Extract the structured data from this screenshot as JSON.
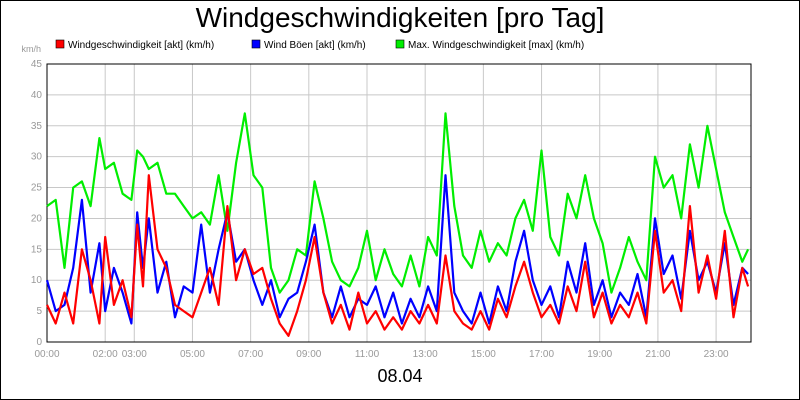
{
  "title": "Windgeschwindigkeiten [pro Tag]",
  "footer_date": "08.04",
  "chart_data": {
    "type": "line",
    "title": "Windgeschwindigkeiten [pro Tag]",
    "ylabel": "km/h",
    "xlabel": "",
    "ylim": [
      0,
      45
    ],
    "yticks": [
      0,
      5,
      10,
      15,
      20,
      25,
      30,
      35,
      40,
      45
    ],
    "xlim": [
      0,
      24.2
    ],
    "xticks": [
      {
        "label": "00:00",
        "x": 0
      },
      {
        "label": "02:00",
        "x": 2
      },
      {
        "label": "03:00",
        "x": 3
      },
      {
        "label": "05:00",
        "x": 5
      },
      {
        "label": "07:00",
        "x": 7
      },
      {
        "label": "09:00",
        "x": 9
      },
      {
        "label": "11:00",
        "x": 11
      },
      {
        "label": "13:00",
        "x": 13
      },
      {
        "label": "15:00",
        "x": 15
      },
      {
        "label": "17:00",
        "x": 17
      },
      {
        "label": "19:00",
        "x": 19
      },
      {
        "label": "21:00",
        "x": 21
      },
      {
        "label": "23:00",
        "x": 23
      }
    ],
    "grid": true,
    "legend_position": "top",
    "series": [
      {
        "name": "Windgeschwindigkeit [akt] (km/h)",
        "color": "#ff0000",
        "points": [
          [
            0.0,
            6
          ],
          [
            0.3,
            3
          ],
          [
            0.6,
            8
          ],
          [
            0.9,
            3
          ],
          [
            1.2,
            15
          ],
          [
            1.5,
            10
          ],
          [
            1.8,
            3
          ],
          [
            2.0,
            17
          ],
          [
            2.3,
            6
          ],
          [
            2.6,
            10
          ],
          [
            2.9,
            4
          ],
          [
            3.1,
            19
          ],
          [
            3.3,
            9
          ],
          [
            3.5,
            27
          ],
          [
            3.8,
            15
          ],
          [
            4.1,
            12
          ],
          [
            4.4,
            6
          ],
          [
            4.7,
            5
          ],
          [
            5.0,
            4
          ],
          [
            5.3,
            8
          ],
          [
            5.6,
            12
          ],
          [
            5.9,
            6
          ],
          [
            6.2,
            22
          ],
          [
            6.5,
            10
          ],
          [
            6.8,
            15
          ],
          [
            7.1,
            11
          ],
          [
            7.4,
            12
          ],
          [
            7.7,
            7
          ],
          [
            8.0,
            3
          ],
          [
            8.3,
            1
          ],
          [
            8.6,
            5
          ],
          [
            8.9,
            10
          ],
          [
            9.2,
            17
          ],
          [
            9.5,
            8
          ],
          [
            9.8,
            3
          ],
          [
            10.1,
            6
          ],
          [
            10.4,
            2
          ],
          [
            10.7,
            8
          ],
          [
            11.0,
            3
          ],
          [
            11.3,
            5
          ],
          [
            11.6,
            2
          ],
          [
            11.9,
            4
          ],
          [
            12.2,
            2
          ],
          [
            12.5,
            5
          ],
          [
            12.8,
            3
          ],
          [
            13.1,
            6
          ],
          [
            13.4,
            3
          ],
          [
            13.7,
            14
          ],
          [
            14.0,
            5
          ],
          [
            14.3,
            3
          ],
          [
            14.6,
            2
          ],
          [
            14.9,
            5
          ],
          [
            15.2,
            2
          ],
          [
            15.5,
            7
          ],
          [
            15.8,
            4
          ],
          [
            16.1,
            9
          ],
          [
            16.4,
            13
          ],
          [
            16.7,
            8
          ],
          [
            17.0,
            4
          ],
          [
            17.3,
            6
          ],
          [
            17.6,
            3
          ],
          [
            17.9,
            9
          ],
          [
            18.2,
            5
          ],
          [
            18.5,
            13
          ],
          [
            18.8,
            4
          ],
          [
            19.1,
            8
          ],
          [
            19.4,
            3
          ],
          [
            19.7,
            6
          ],
          [
            20.0,
            4
          ],
          [
            20.3,
            8
          ],
          [
            20.6,
            3
          ],
          [
            20.9,
            18
          ],
          [
            21.2,
            8
          ],
          [
            21.5,
            10
          ],
          [
            21.8,
            5
          ],
          [
            22.1,
            22
          ],
          [
            22.4,
            8
          ],
          [
            22.7,
            14
          ],
          [
            23.0,
            7
          ],
          [
            23.3,
            18
          ],
          [
            23.6,
            4
          ],
          [
            23.9,
            12
          ],
          [
            24.1,
            9
          ]
        ]
      },
      {
        "name": "Wind Böen [akt] (km/h)",
        "color": "#0000ff",
        "points": [
          [
            0.0,
            10
          ],
          [
            0.3,
            5
          ],
          [
            0.6,
            6
          ],
          [
            0.9,
            12
          ],
          [
            1.2,
            23
          ],
          [
            1.5,
            8
          ],
          [
            1.8,
            16
          ],
          [
            2.0,
            5
          ],
          [
            2.3,
            12
          ],
          [
            2.6,
            8
          ],
          [
            2.9,
            3
          ],
          [
            3.1,
            21
          ],
          [
            3.3,
            12
          ],
          [
            3.5,
            20
          ],
          [
            3.8,
            8
          ],
          [
            4.1,
            13
          ],
          [
            4.4,
            4
          ],
          [
            4.7,
            9
          ],
          [
            5.0,
            8
          ],
          [
            5.3,
            19
          ],
          [
            5.6,
            8
          ],
          [
            5.9,
            15
          ],
          [
            6.2,
            21
          ],
          [
            6.5,
            13
          ],
          [
            6.8,
            15
          ],
          [
            7.1,
            10
          ],
          [
            7.4,
            6
          ],
          [
            7.7,
            10
          ],
          [
            8.0,
            4
          ],
          [
            8.3,
            7
          ],
          [
            8.6,
            8
          ],
          [
            8.9,
            13
          ],
          [
            9.2,
            19
          ],
          [
            9.5,
            8
          ],
          [
            9.8,
            4
          ],
          [
            10.1,
            9
          ],
          [
            10.4,
            4
          ],
          [
            10.7,
            7
          ],
          [
            11.0,
            6
          ],
          [
            11.3,
            9
          ],
          [
            11.6,
            4
          ],
          [
            11.9,
            8
          ],
          [
            12.2,
            3
          ],
          [
            12.5,
            7
          ],
          [
            12.8,
            4
          ],
          [
            13.1,
            9
          ],
          [
            13.4,
            5
          ],
          [
            13.7,
            27
          ],
          [
            14.0,
            8
          ],
          [
            14.3,
            5
          ],
          [
            14.6,
            3
          ],
          [
            14.9,
            8
          ],
          [
            15.2,
            3
          ],
          [
            15.5,
            9
          ],
          [
            15.8,
            5
          ],
          [
            16.1,
            13
          ],
          [
            16.4,
            18
          ],
          [
            16.7,
            10
          ],
          [
            17.0,
            6
          ],
          [
            17.3,
            9
          ],
          [
            17.6,
            4
          ],
          [
            17.9,
            13
          ],
          [
            18.2,
            8
          ],
          [
            18.5,
            16
          ],
          [
            18.8,
            6
          ],
          [
            19.1,
            10
          ],
          [
            19.4,
            4
          ],
          [
            19.7,
            8
          ],
          [
            20.0,
            6
          ],
          [
            20.3,
            11
          ],
          [
            20.6,
            4
          ],
          [
            20.9,
            20
          ],
          [
            21.2,
            11
          ],
          [
            21.5,
            14
          ],
          [
            21.8,
            7
          ],
          [
            22.1,
            18
          ],
          [
            22.4,
            10
          ],
          [
            22.7,
            13
          ],
          [
            23.0,
            8
          ],
          [
            23.3,
            16
          ],
          [
            23.6,
            6
          ],
          [
            23.9,
            12
          ],
          [
            24.1,
            11
          ]
        ]
      },
      {
        "name": "Max. Windgeschwindigkeit [max] (km/h)",
        "color": "#00ee00",
        "points": [
          [
            0.0,
            22
          ],
          [
            0.3,
            23
          ],
          [
            0.6,
            12
          ],
          [
            0.9,
            25
          ],
          [
            1.2,
            26
          ],
          [
            1.5,
            22
          ],
          [
            1.8,
            33
          ],
          [
            2.0,
            28
          ],
          [
            2.3,
            29
          ],
          [
            2.6,
            24
          ],
          [
            2.9,
            23
          ],
          [
            3.1,
            31
          ],
          [
            3.3,
            30
          ],
          [
            3.5,
            28
          ],
          [
            3.8,
            29
          ],
          [
            4.1,
            24
          ],
          [
            4.4,
            24
          ],
          [
            4.7,
            22
          ],
          [
            5.0,
            20
          ],
          [
            5.3,
            21
          ],
          [
            5.6,
            19
          ],
          [
            5.9,
            27
          ],
          [
            6.2,
            18
          ],
          [
            6.5,
            29
          ],
          [
            6.8,
            37
          ],
          [
            7.1,
            27
          ],
          [
            7.4,
            25
          ],
          [
            7.7,
            12
          ],
          [
            8.0,
            8
          ],
          [
            8.3,
            10
          ],
          [
            8.6,
            15
          ],
          [
            8.9,
            14
          ],
          [
            9.2,
            26
          ],
          [
            9.5,
            20
          ],
          [
            9.8,
            13
          ],
          [
            10.1,
            10
          ],
          [
            10.4,
            9
          ],
          [
            10.7,
            12
          ],
          [
            11.0,
            18
          ],
          [
            11.3,
            10
          ],
          [
            11.6,
            15
          ],
          [
            11.9,
            11
          ],
          [
            12.2,
            9
          ],
          [
            12.5,
            14
          ],
          [
            12.8,
            9
          ],
          [
            13.1,
            17
          ],
          [
            13.4,
            14
          ],
          [
            13.7,
            37
          ],
          [
            14.0,
            22
          ],
          [
            14.3,
            14
          ],
          [
            14.6,
            12
          ],
          [
            14.9,
            18
          ],
          [
            15.2,
            13
          ],
          [
            15.5,
            16
          ],
          [
            15.8,
            14
          ],
          [
            16.1,
            20
          ],
          [
            16.4,
            23
          ],
          [
            16.7,
            18
          ],
          [
            17.0,
            31
          ],
          [
            17.3,
            17
          ],
          [
            17.6,
            14
          ],
          [
            17.9,
            24
          ],
          [
            18.2,
            20
          ],
          [
            18.5,
            27
          ],
          [
            18.8,
            20
          ],
          [
            19.1,
            16
          ],
          [
            19.4,
            8
          ],
          [
            19.7,
            12
          ],
          [
            20.0,
            17
          ],
          [
            20.3,
            13
          ],
          [
            20.6,
            10
          ],
          [
            20.9,
            30
          ],
          [
            21.2,
            25
          ],
          [
            21.5,
            27
          ],
          [
            21.8,
            20
          ],
          [
            22.1,
            32
          ],
          [
            22.4,
            25
          ],
          [
            22.7,
            35
          ],
          [
            23.0,
            28
          ],
          [
            23.3,
            21
          ],
          [
            23.6,
            17
          ],
          [
            23.9,
            13
          ],
          [
            24.1,
            15
          ]
        ]
      }
    ]
  }
}
